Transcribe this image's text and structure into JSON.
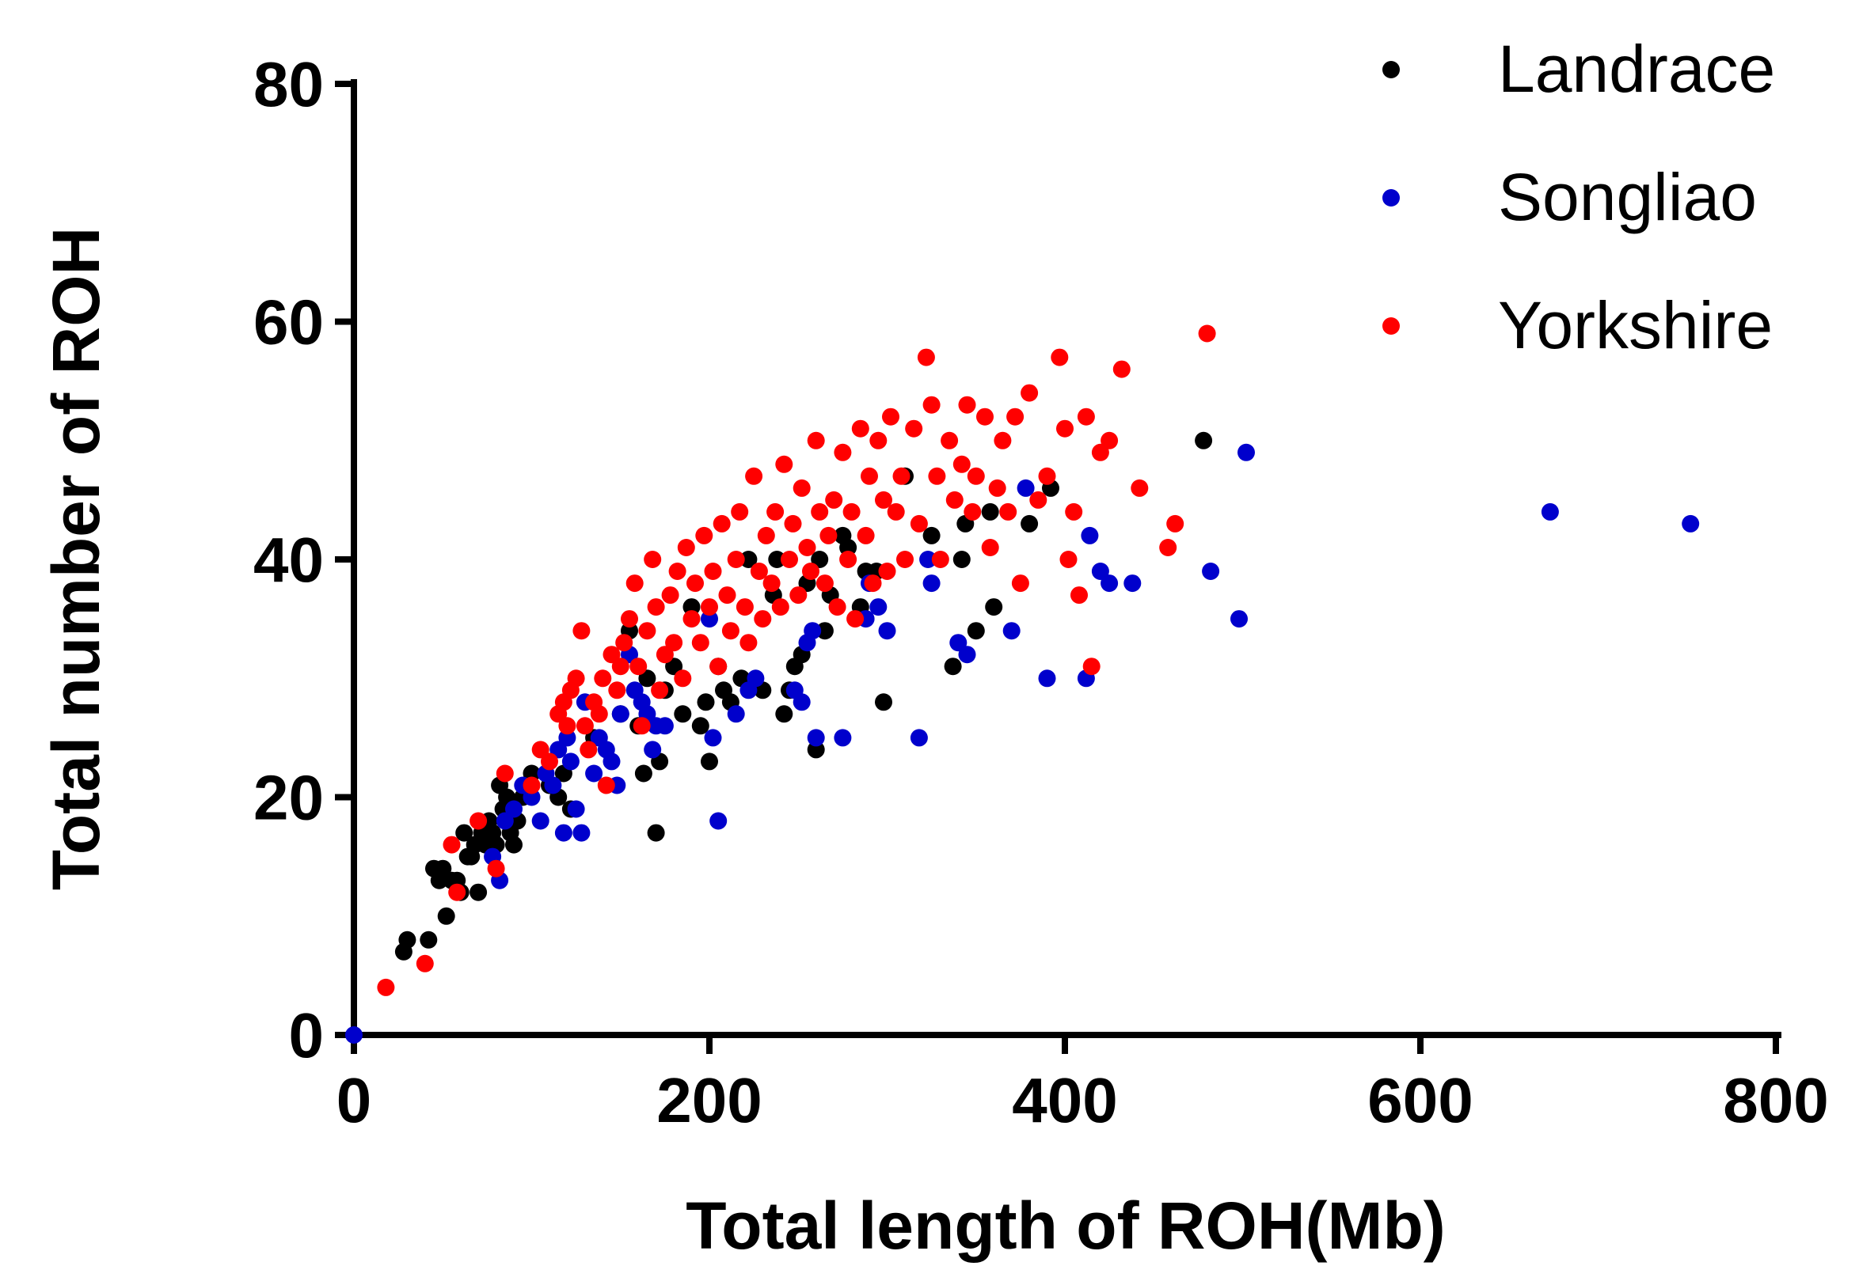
{
  "chart_data": {
    "type": "scatter",
    "xlabel": "Total length of ROH(Mb)",
    "ylabel": "Total number of ROH",
    "xlim": [
      0,
      800
    ],
    "ylim": [
      0,
      80
    ],
    "xticks": [
      "0",
      "200",
      "400",
      "600",
      "800"
    ],
    "yticks": [
      "0",
      "20",
      "40",
      "60",
      "80"
    ],
    "grid": false,
    "legend_position": "top-right",
    "series": [
      {
        "name": "Landrace",
        "color": "#000000",
        "points": [
          [
            28,
            7
          ],
          [
            30,
            8
          ],
          [
            42,
            8
          ],
          [
            45,
            14
          ],
          [
            48,
            13
          ],
          [
            50,
            14
          ],
          [
            52,
            10
          ],
          [
            55,
            13
          ],
          [
            58,
            13
          ],
          [
            60,
            12
          ],
          [
            62,
            17
          ],
          [
            64,
            15
          ],
          [
            66,
            15
          ],
          [
            68,
            16
          ],
          [
            70,
            12
          ],
          [
            72,
            17
          ],
          [
            74,
            16
          ],
          [
            76,
            18
          ],
          [
            78,
            17
          ],
          [
            80,
            16
          ],
          [
            82,
            21
          ],
          [
            84,
            19
          ],
          [
            86,
            20
          ],
          [
            88,
            17
          ],
          [
            90,
            16
          ],
          [
            92,
            18
          ],
          [
            95,
            20
          ],
          [
            100,
            22
          ],
          [
            110,
            21
          ],
          [
            115,
            20
          ],
          [
            118,
            22
          ],
          [
            122,
            19
          ],
          [
            135,
            25
          ],
          [
            150,
            27
          ],
          [
            155,
            34
          ],
          [
            160,
            26
          ],
          [
            163,
            22
          ],
          [
            165,
            30
          ],
          [
            170,
            17
          ],
          [
            172,
            23
          ],
          [
            175,
            29
          ],
          [
            180,
            31
          ],
          [
            185,
            27
          ],
          [
            190,
            36
          ],
          [
            195,
            26
          ],
          [
            198,
            28
          ],
          [
            200,
            23
          ],
          [
            205,
            31
          ],
          [
            208,
            29
          ],
          [
            212,
            28
          ],
          [
            218,
            30
          ],
          [
            222,
            40
          ],
          [
            230,
            29
          ],
          [
            236,
            37
          ],
          [
            238,
            40
          ],
          [
            242,
            27
          ],
          [
            245,
            29
          ],
          [
            248,
            31
          ],
          [
            252,
            32
          ],
          [
            255,
            38
          ],
          [
            260,
            24
          ],
          [
            262,
            40
          ],
          [
            265,
            34
          ],
          [
            268,
            37
          ],
          [
            275,
            42
          ],
          [
            278,
            41
          ],
          [
            285,
            36
          ],
          [
            288,
            39
          ],
          [
            294,
            39
          ],
          [
            298,
            28
          ],
          [
            310,
            47
          ],
          [
            325,
            42
          ],
          [
            337,
            31
          ],
          [
            342,
            40
          ],
          [
            344,
            43
          ],
          [
            350,
            34
          ],
          [
            358,
            44
          ],
          [
            360,
            36
          ],
          [
            380,
            43
          ],
          [
            392,
            46
          ],
          [
            478,
            50
          ]
        ]
      },
      {
        "name": "Songliao",
        "color": "#0000cc",
        "points": [
          [
            0,
            0
          ],
          [
            78,
            15
          ],
          [
            82,
            13
          ],
          [
            85,
            18
          ],
          [
            90,
            19
          ],
          [
            95,
            21
          ],
          [
            100,
            20
          ],
          [
            105,
            18
          ],
          [
            108,
            22
          ],
          [
            112,
            21
          ],
          [
            115,
            24
          ],
          [
            118,
            17
          ],
          [
            120,
            25
          ],
          [
            122,
            23
          ],
          [
            125,
            19
          ],
          [
            128,
            17
          ],
          [
            130,
            28
          ],
          [
            135,
            22
          ],
          [
            138,
            25
          ],
          [
            142,
            24
          ],
          [
            145,
            23
          ],
          [
            148,
            21
          ],
          [
            150,
            27
          ],
          [
            155,
            32
          ],
          [
            158,
            29
          ],
          [
            162,
            28
          ],
          [
            165,
            27
          ],
          [
            168,
            24
          ],
          [
            170,
            26
          ],
          [
            175,
            26
          ],
          [
            200,
            35
          ],
          [
            202,
            25
          ],
          [
            205,
            18
          ],
          [
            215,
            27
          ],
          [
            222,
            29
          ],
          [
            226,
            30
          ],
          [
            248,
            29
          ],
          [
            252,
            28
          ],
          [
            255,
            33
          ],
          [
            258,
            34
          ],
          [
            260,
            25
          ],
          [
            275,
            25
          ],
          [
            288,
            35
          ],
          [
            290,
            38
          ],
          [
            295,
            36
          ],
          [
            300,
            34
          ],
          [
            318,
            25
          ],
          [
            323,
            40
          ],
          [
            325,
            38
          ],
          [
            340,
            33
          ],
          [
            345,
            32
          ],
          [
            370,
            34
          ],
          [
            378,
            46
          ],
          [
            390,
            30
          ],
          [
            412,
            30
          ],
          [
            414,
            42
          ],
          [
            420,
            39
          ],
          [
            425,
            38
          ],
          [
            438,
            38
          ],
          [
            482,
            39
          ],
          [
            498,
            35
          ],
          [
            502,
            49
          ],
          [
            673,
            44
          ],
          [
            752,
            43
          ]
        ]
      },
      {
        "name": "Yorkshire",
        "color": "#ff0000",
        "points": [
          [
            18,
            4
          ],
          [
            40,
            6
          ],
          [
            55,
            16
          ],
          [
            58,
            12
          ],
          [
            70,
            18
          ],
          [
            80,
            14
          ],
          [
            85,
            22
          ],
          [
            100,
            21
          ],
          [
            105,
            24
          ],
          [
            110,
            23
          ],
          [
            115,
            27
          ],
          [
            118,
            28
          ],
          [
            120,
            26
          ],
          [
            122,
            29
          ],
          [
            125,
            30
          ],
          [
            128,
            34
          ],
          [
            130,
            26
          ],
          [
            132,
            24
          ],
          [
            135,
            28
          ],
          [
            138,
            27
          ],
          [
            140,
            30
          ],
          [
            142,
            21
          ],
          [
            145,
            32
          ],
          [
            148,
            29
          ],
          [
            150,
            31
          ],
          [
            152,
            33
          ],
          [
            155,
            35
          ],
          [
            158,
            38
          ],
          [
            160,
            31
          ],
          [
            162,
            26
          ],
          [
            165,
            34
          ],
          [
            168,
            40
          ],
          [
            170,
            36
          ],
          [
            172,
            29
          ],
          [
            175,
            32
          ],
          [
            178,
            37
          ],
          [
            180,
            33
          ],
          [
            182,
            39
          ],
          [
            185,
            30
          ],
          [
            187,
            41
          ],
          [
            190,
            35
          ],
          [
            192,
            38
          ],
          [
            195,
            33
          ],
          [
            197,
            42
          ],
          [
            200,
            36
          ],
          [
            202,
            39
          ],
          [
            205,
            31
          ],
          [
            207,
            43
          ],
          [
            210,
            37
          ],
          [
            212,
            34
          ],
          [
            215,
            40
          ],
          [
            217,
            44
          ],
          [
            220,
            36
          ],
          [
            222,
            33
          ],
          [
            225,
            47
          ],
          [
            228,
            39
          ],
          [
            230,
            35
          ],
          [
            232,
            42
          ],
          [
            235,
            38
          ],
          [
            237,
            44
          ],
          [
            240,
            36
          ],
          [
            242,
            48
          ],
          [
            245,
            40
          ],
          [
            247,
            43
          ],
          [
            250,
            37
          ],
          [
            252,
            46
          ],
          [
            255,
            41
          ],
          [
            257,
            39
          ],
          [
            260,
            50
          ],
          [
            262,
            44
          ],
          [
            265,
            38
          ],
          [
            267,
            42
          ],
          [
            270,
            45
          ],
          [
            272,
            36
          ],
          [
            275,
            49
          ],
          [
            278,
            40
          ],
          [
            280,
            44
          ],
          [
            282,
            35
          ],
          [
            285,
            51
          ],
          [
            288,
            42
          ],
          [
            290,
            47
          ],
          [
            292,
            38
          ],
          [
            295,
            50
          ],
          [
            298,
            45
          ],
          [
            300,
            39
          ],
          [
            302,
            52
          ],
          [
            305,
            44
          ],
          [
            308,
            47
          ],
          [
            310,
            40
          ],
          [
            315,
            51
          ],
          [
            318,
            43
          ],
          [
            322,
            57
          ],
          [
            325,
            53
          ],
          [
            328,
            47
          ],
          [
            330,
            40
          ],
          [
            335,
            50
          ],
          [
            338,
            45
          ],
          [
            342,
            48
          ],
          [
            345,
            53
          ],
          [
            348,
            44
          ],
          [
            350,
            47
          ],
          [
            355,
            52
          ],
          [
            358,
            41
          ],
          [
            362,
            46
          ],
          [
            365,
            50
          ],
          [
            368,
            44
          ],
          [
            372,
            52
          ],
          [
            375,
            38
          ],
          [
            380,
            54
          ],
          [
            385,
            45
          ],
          [
            390,
            47
          ],
          [
            397,
            57
          ],
          [
            400,
            51
          ],
          [
            402,
            40
          ],
          [
            405,
            44
          ],
          [
            408,
            37
          ],
          [
            412,
            52
          ],
          [
            415,
            31
          ],
          [
            420,
            49
          ],
          [
            425,
            50
          ],
          [
            432,
            56
          ],
          [
            442,
            46
          ],
          [
            458,
            41
          ],
          [
            462,
            43
          ],
          [
            480,
            59
          ]
        ]
      }
    ]
  }
}
